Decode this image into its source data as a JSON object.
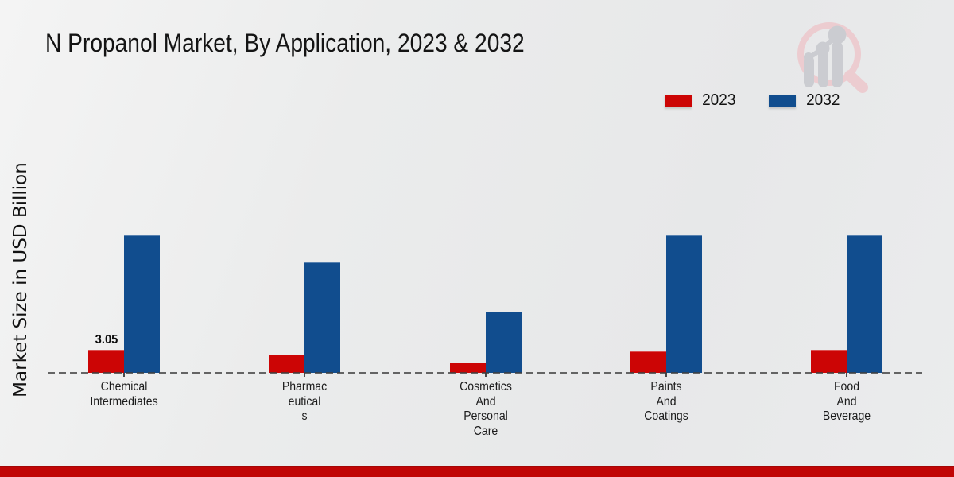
{
  "header": {
    "title": "N Propanol Market, By Application, 2023 & 2032"
  },
  "watermark": {
    "icon": "magnifier-bar-chart-logo"
  },
  "colors": {
    "bar_2023_red": "#cc0505",
    "bar_2032_blue": "#114d8e",
    "footer_band_red": "#c10505",
    "background_gray": "#eaebec",
    "baseline_gray": "#3e3e3e"
  },
  "footer": {
    "band_color": "#c10505"
  },
  "chart_data": {
    "type": "bar",
    "title": "N Propanol Market, By Application, 2023 & 2032",
    "xlabel": "",
    "ylabel": "Market Size in USD Billion",
    "ylim": [
      0,
      20
    ],
    "grid": false,
    "baseline_style": "dashed",
    "legend_position": "top-right",
    "categories": [
      "Chemical\nIntermediates",
      "Pharmac\neutical\ns",
      "Cosmetics\nAnd\nPersonal\nCare",
      "Paints\nAnd\nCoatings",
      "Food\nAnd\nBeverage"
    ],
    "series": [
      {
        "name": "2023",
        "color": "#cc0505",
        "values": [
          3.05,
          2.4,
          1.4,
          2.85,
          3.1
        ]
      },
      {
        "name": "2032",
        "color": "#114d8e",
        "values": [
          18.2,
          14.6,
          8.1,
          18.2,
          18.2
        ]
      }
    ],
    "data_labels": [
      {
        "series": "2023",
        "category_index": 0,
        "text": "3.05"
      }
    ]
  }
}
